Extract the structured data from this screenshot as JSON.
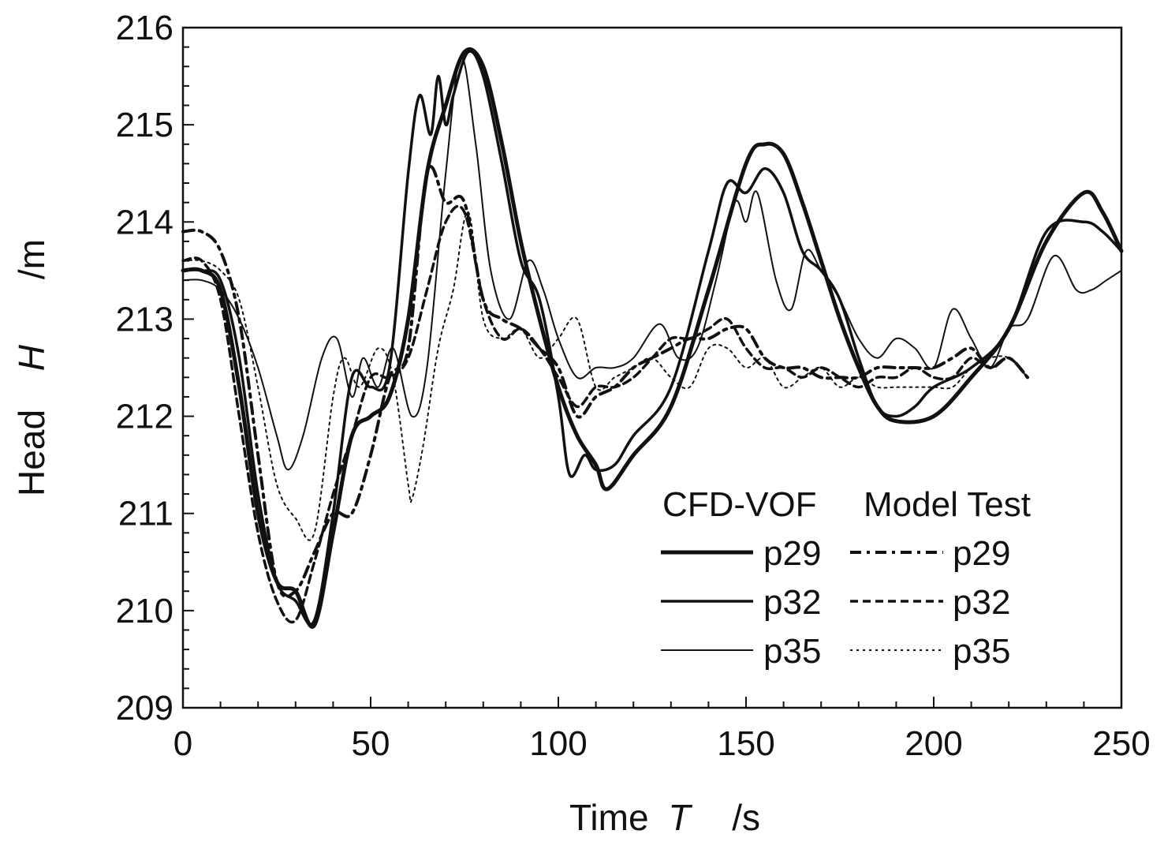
{
  "chart_data": {
    "type": "line",
    "title": "",
    "xlabel": "Time",
    "xlabel_var": "T",
    "xlabel_unit": "/s",
    "ylabel": "Head",
    "ylabel_var": "H",
    "ylabel_unit": "/m",
    "xlim": [
      0,
      250
    ],
    "ylim": [
      209,
      216
    ],
    "x_ticks": [
      "0",
      "50",
      "100",
      "150",
      "200",
      "250"
    ],
    "y_ticks": [
      "209",
      "210",
      "211",
      "212",
      "213",
      "214",
      "215",
      "216"
    ],
    "grid": false,
    "legend": {
      "placement": "bottom-right",
      "header_cfd": "CFD-VOF",
      "header_test": "Model Test",
      "labels": [
        "p29",
        "p32",
        "p35"
      ]
    },
    "series": [
      {
        "name": "CFD-VOF p29",
        "style": "solid",
        "weight": "heavy",
        "x": [
          0,
          5,
          10,
          15,
          20,
          25,
          30,
          35,
          40,
          45,
          50,
          55,
          60,
          65,
          70,
          75,
          80,
          85,
          90,
          95,
          100,
          105,
          110,
          113,
          120,
          130,
          140,
          150,
          155,
          160,
          165,
          170,
          175,
          180,
          185,
          190,
          200,
          210,
          220,
          230,
          240,
          245,
          250
        ],
        "y": [
          213.5,
          213.5,
          213.3,
          212.3,
          211.0,
          210.3,
          210.2,
          209.85,
          210.8,
          211.8,
          212.0,
          212.2,
          213.0,
          214.5,
          215.2,
          215.75,
          215.6,
          214.8,
          213.8,
          213.0,
          212.3,
          211.8,
          211.5,
          211.25,
          211.6,
          212.1,
          213.3,
          214.6,
          214.8,
          214.7,
          214.2,
          213.6,
          213.0,
          212.5,
          212.1,
          211.95,
          212.0,
          212.4,
          212.9,
          213.8,
          214.3,
          214.1,
          213.7
        ]
      },
      {
        "name": "CFD-VOF p32",
        "style": "solid",
        "weight": "medium",
        "x": [
          0,
          5,
          10,
          15,
          20,
          25,
          30,
          35,
          40,
          45,
          50,
          55,
          60,
          63,
          66,
          68,
          70,
          72,
          76,
          80,
          85,
          90,
          95,
          100,
          103,
          107,
          110,
          115,
          120,
          130,
          140,
          145,
          150,
          155,
          160,
          165,
          170,
          175,
          180,
          185,
          190,
          195,
          200,
          210,
          220,
          230,
          240,
          245,
          250
        ],
        "y": [
          213.5,
          213.5,
          213.4,
          212.6,
          211.2,
          210.3,
          210.1,
          209.9,
          211.0,
          212.4,
          212.3,
          212.5,
          214.5,
          215.3,
          214.9,
          215.5,
          215.0,
          215.3,
          215.75,
          215.5,
          214.6,
          213.6,
          213.2,
          212.2,
          211.4,
          211.6,
          211.45,
          211.5,
          211.8,
          212.3,
          213.7,
          214.4,
          214.3,
          214.55,
          214.3,
          213.7,
          213.5,
          213.2,
          212.6,
          212.1,
          212.0,
          212.1,
          212.3,
          212.5,
          212.9,
          213.9,
          214.0,
          213.9,
          213.7
        ]
      },
      {
        "name": "CFD-VOF p35",
        "style": "solid",
        "weight": "light",
        "x": [
          0,
          5,
          10,
          15,
          20,
          25,
          28,
          32,
          37,
          41,
          45,
          48,
          52,
          56,
          61,
          65,
          70,
          74,
          78,
          82,
          87,
          92,
          96,
          100,
          105,
          110,
          115,
          120,
          127,
          132,
          137,
          142,
          147,
          150,
          153,
          158,
          162,
          166,
          170,
          175,
          180,
          185,
          190,
          195,
          200,
          205,
          210,
          215,
          220,
          225,
          232,
          238,
          242,
          246,
          250
        ],
        "y": [
          213.4,
          213.4,
          213.3,
          213.0,
          212.5,
          211.8,
          211.45,
          211.8,
          212.6,
          212.8,
          212.2,
          212.6,
          212.3,
          212.7,
          212.0,
          212.5,
          214.5,
          215.7,
          214.8,
          213.5,
          213.0,
          213.6,
          213.3,
          212.8,
          212.4,
          212.5,
          212.5,
          212.6,
          212.95,
          212.6,
          212.7,
          213.4,
          214.2,
          214.0,
          214.3,
          213.4,
          213.1,
          213.7,
          213.5,
          213.2,
          212.8,
          212.6,
          212.8,
          212.7,
          212.5,
          213.1,
          212.8,
          212.5,
          212.9,
          213.0,
          213.65,
          213.3,
          213.3,
          213.4,
          213.5
        ]
      },
      {
        "name": "Model Test p29",
        "style": "dashed",
        "weight": "heavy",
        "x": [
          0,
          5,
          10,
          15,
          20,
          25,
          30,
          35,
          40,
          45,
          50,
          55,
          60,
          65,
          70,
          75,
          80,
          85,
          90,
          95,
          100,
          105,
          110,
          115,
          120,
          125,
          130,
          135,
          140,
          145,
          150,
          155,
          160,
          165,
          170,
          175,
          180,
          185,
          190,
          195,
          200,
          205,
          210,
          215,
          220,
          225
        ],
        "y": [
          213.9,
          213.9,
          213.7,
          213.0,
          211.6,
          210.3,
          210.2,
          210.6,
          211.0,
          211.0,
          211.6,
          212.4,
          212.7,
          214.5,
          214.2,
          214.2,
          213.2,
          213.0,
          212.9,
          212.7,
          212.5,
          212.0,
          212.2,
          212.3,
          212.5,
          212.6,
          212.7,
          212.8,
          212.8,
          212.9,
          212.9,
          212.6,
          212.5,
          212.5,
          212.4,
          212.4,
          212.4,
          212.5,
          212.5,
          212.5,
          212.5,
          212.6,
          212.7,
          212.5,
          212.6,
          212.4
        ]
      },
      {
        "name": "Model Test p32",
        "style": "dashed",
        "weight": "medium",
        "x": [
          0,
          5,
          10,
          15,
          20,
          25,
          30,
          35,
          40,
          45,
          50,
          55,
          60,
          65,
          70,
          75,
          80,
          85,
          90,
          95,
          100,
          105,
          110,
          115,
          120,
          125,
          130,
          135,
          140,
          145,
          150,
          155,
          160,
          165,
          170,
          175,
          180,
          185,
          190,
          195,
          200,
          205,
          210,
          215,
          220,
          225
        ],
        "y": [
          213.6,
          213.6,
          213.2,
          212.0,
          210.8,
          210.1,
          209.9,
          210.5,
          211.2,
          211.8,
          212.4,
          212.4,
          212.6,
          213.3,
          214.0,
          214.1,
          213.2,
          212.8,
          212.9,
          212.7,
          212.4,
          212.1,
          212.3,
          212.3,
          212.4,
          212.6,
          212.8,
          212.8,
          212.9,
          213.0,
          212.7,
          212.5,
          212.5,
          212.4,
          212.5,
          212.4,
          212.3,
          212.4,
          212.4,
          212.5,
          212.4,
          212.4,
          212.6,
          212.5,
          212.6,
          212.4
        ]
      },
      {
        "name": "Model Test p35",
        "style": "dotted",
        "weight": "light",
        "x": [
          0,
          5,
          10,
          15,
          20,
          25,
          30,
          35,
          40,
          43,
          47,
          52,
          56,
          60,
          61,
          64,
          68,
          72,
          76,
          80,
          85,
          90,
          95,
          100,
          105,
          110,
          115,
          120,
          125,
          130,
          135,
          140,
          145,
          150,
          155,
          160,
          165,
          170,
          175,
          180,
          185,
          190,
          195,
          200,
          205,
          210,
          215,
          220,
          225
        ],
        "y": [
          213.6,
          213.6,
          213.5,
          213.2,
          212.3,
          211.3,
          210.95,
          210.8,
          212.2,
          212.6,
          212.3,
          212.7,
          212.4,
          211.3,
          211.15,
          211.7,
          212.7,
          213.3,
          214.1,
          213.0,
          212.8,
          212.9,
          212.6,
          212.8,
          213.0,
          212.3,
          212.4,
          212.5,
          212.6,
          212.4,
          212.3,
          212.7,
          212.7,
          212.5,
          212.6,
          212.3,
          212.4,
          212.5,
          212.3,
          212.4,
          212.3,
          212.3,
          212.3,
          212.3,
          212.3,
          212.5,
          212.6,
          212.6,
          212.4
        ]
      }
    ]
  }
}
